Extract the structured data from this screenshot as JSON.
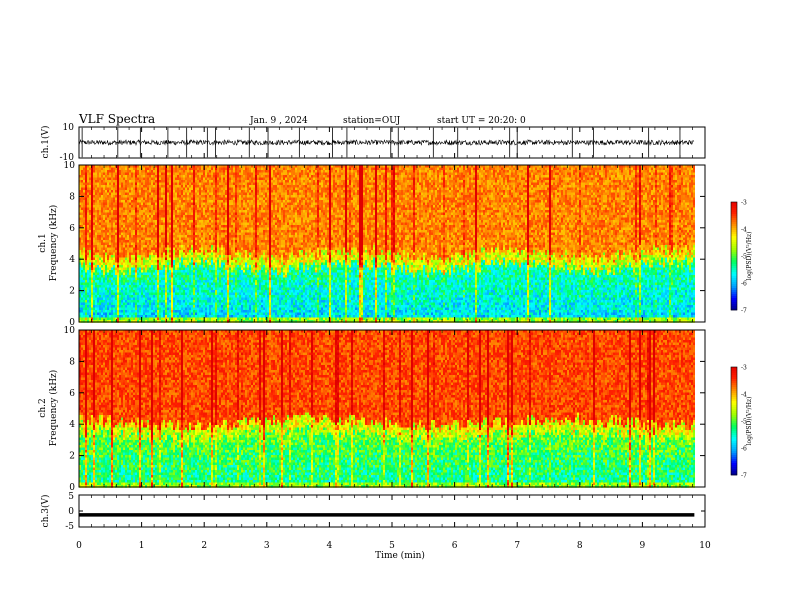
{
  "header": {
    "title": "VLF Spectra",
    "date": "Jan. 9 , 2024",
    "station": "station=OUJ",
    "start": "start UT = 20:20: 0"
  },
  "chart_data": [
    {
      "type": "line",
      "name": "ch1-waveform",
      "ylabel": "ch.1(V)",
      "ylim": [
        -10,
        10
      ],
      "yticks": [
        "10",
        "-10"
      ],
      "x_range": [
        0,
        9.83
      ],
      "baseline": 0,
      "noise_amplitude": 2,
      "spike_times": [
        0.05,
        0.62,
        0.98,
        1.42,
        1.72,
        2.05,
        2.18,
        2.72,
        3.02,
        3.52,
        4.05,
        4.28,
        4.98,
        5.1,
        5.66,
        6.05,
        6.88,
        7.0,
        7.88,
        8.22,
        9.1,
        9.6
      ]
    },
    {
      "type": "heatmap",
      "name": "ch1-spectrogram",
      "ylabel": "ch.1\nFrequency (kHz)",
      "xlim": [
        0,
        9.83
      ],
      "ylim": [
        0,
        10
      ],
      "yticks": [
        "0",
        "2",
        "4",
        "6",
        "8",
        "10"
      ],
      "noise_floor_khz": 3.6,
      "band_color_low": "#1a2fd8",
      "band_color_mid": "#2cd8c0",
      "band_color_high": "#e83020",
      "colorbar": {
        "label": "log(PSD)(V²/Hz)",
        "range": [
          -7,
          -3
        ],
        "ticks": [
          "-3",
          "-4",
          "-5",
          "-6",
          "-7"
        ]
      }
    },
    {
      "type": "heatmap",
      "name": "ch2-spectrogram",
      "ylabel": "ch.2\nFrequency (kHz)",
      "xlim": [
        0,
        9.83
      ],
      "ylim": [
        0,
        10
      ],
      "yticks": [
        "0",
        "2",
        "4",
        "6",
        "8",
        "10"
      ],
      "noise_floor_khz": 3.4,
      "band_color_low": "#2cc8d0",
      "band_color_mid": "#e8e020",
      "band_color_high": "#e83020",
      "colorbar": {
        "label": "log(PSD)(V²/Hz)",
        "range": [
          -7,
          -3
        ],
        "ticks": [
          "-3",
          "-4",
          "-5",
          "-6",
          "-7"
        ]
      }
    },
    {
      "type": "line",
      "name": "ch3-level",
      "ylabel": "ch.3(V)",
      "ylim": [
        -5,
        5
      ],
      "yticks": [
        "5",
        "0",
        "-5"
      ],
      "x_range": [
        0,
        9.83
      ],
      "baseline": -1.2
    }
  ],
  "xaxis": {
    "label": "Time (min)",
    "ticks": [
      "0",
      "1",
      "2",
      "3",
      "4",
      "5",
      "6",
      "7",
      "8",
      "9",
      "10"
    ],
    "range": [
      0,
      10
    ]
  },
  "colors": {
    "colormap": [
      "#000080",
      "#0000ff",
      "#00a0ff",
      "#00ffff",
      "#00ff60",
      "#a0ff00",
      "#ffff00",
      "#ff9000",
      "#ff2000",
      "#e00000",
      "#ffffff"
    ]
  }
}
